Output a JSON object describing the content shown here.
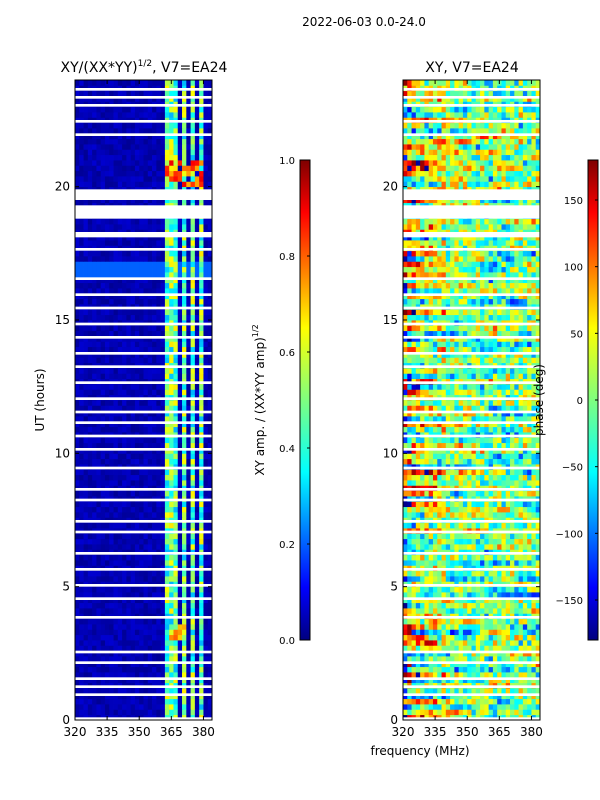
{
  "figure": {
    "suptitle": "2022-06-03 0.0-24.0",
    "xlabel": "frequency (MHz)"
  },
  "chart_data": [
    {
      "type": "heatmap",
      "title": "XY/(XX*YY)",
      "title_exponent": "1/2",
      "title_suffix": ", V7=EA24",
      "xlabel": "",
      "ylabel": "UT (hours)",
      "xlim": [
        320,
        384
      ],
      "ylim": [
        0,
        24
      ],
      "xticks": [
        "320",
        "335",
        "350",
        "365",
        "380"
      ],
      "xtick_values": [
        320,
        335,
        350,
        365,
        380
      ],
      "yticks": [
        "0",
        "5",
        "10",
        "15",
        "20"
      ],
      "ytick_values": [
        0,
        5,
        10,
        15,
        20
      ],
      "colormap": "jet",
      "colorbar": {
        "label": "XY amp. / (XX*YY amp)",
        "label_exponent": "1/2",
        "range": [
          0,
          1
        ],
        "ticks": [
          "0.0",
          "0.2",
          "0.4",
          "0.6",
          "0.8",
          "1.0"
        ],
        "tick_values": [
          0,
          0.2,
          0.4,
          0.6,
          0.8,
          1.0
        ]
      },
      "bright_channels_mhz": [
        [
          362,
          366
        ],
        [
          367,
          368
        ],
        [
          370,
          372
        ],
        [
          374,
          376
        ],
        [
          378,
          380
        ]
      ],
      "flagged_hours": [
        [
          0.0,
          0.1
        ],
        [
          0.9,
          1.0
        ],
        [
          1.2,
          1.3
        ],
        [
          1.5,
          1.6
        ],
        [
          2.1,
          2.2
        ],
        [
          2.5,
          2.6
        ],
        [
          3.8,
          3.9
        ],
        [
          4.5,
          4.6
        ],
        [
          5.0,
          5.1
        ],
        [
          5.6,
          5.7
        ],
        [
          6.2,
          6.3
        ],
        [
          7.0,
          7.1
        ],
        [
          7.4,
          7.5
        ],
        [
          8.2,
          8.3
        ],
        [
          8.6,
          8.7
        ],
        [
          9.4,
          9.5
        ],
        [
          10.1,
          10.2
        ],
        [
          10.6,
          10.7
        ],
        [
          11.1,
          11.2
        ],
        [
          11.5,
          11.6
        ],
        [
          12.0,
          12.1
        ],
        [
          12.6,
          12.7
        ],
        [
          13.2,
          13.3
        ],
        [
          13.7,
          13.8
        ],
        [
          14.3,
          14.4
        ],
        [
          14.8,
          14.9
        ],
        [
          15.4,
          15.5
        ],
        [
          15.9,
          16.0
        ],
        [
          16.5,
          16.6
        ],
        [
          17.6,
          17.7
        ],
        [
          18.1,
          18.3
        ],
        [
          18.8,
          19.3
        ],
        [
          19.5,
          19.9
        ],
        [
          21.9,
          22.0
        ],
        [
          22.4,
          22.5
        ],
        [
          23.0,
          23.1
        ],
        [
          23.3,
          23.4
        ],
        [
          23.6,
          23.7
        ]
      ]
    },
    {
      "type": "heatmap",
      "title": "XY, V7=EA24",
      "xlabel": "",
      "ylabel": "",
      "xlim": [
        320,
        384
      ],
      "ylim": [
        0,
        24
      ],
      "xticks": [
        "320",
        "335",
        "350",
        "365",
        "380"
      ],
      "xtick_values": [
        320,
        335,
        350,
        365,
        380
      ],
      "yticks": [
        "0",
        "5",
        "10",
        "15",
        "20"
      ],
      "ytick_values": [
        0,
        5,
        10,
        15,
        20
      ],
      "colormap": "jet",
      "colorbar": {
        "label": "phase (deg)",
        "range": [
          -180,
          180
        ],
        "ticks": [
          "−150",
          "−100",
          "−50",
          "0",
          "50",
          "100",
          "150"
        ],
        "tick_values": [
          -150,
          -100,
          -50,
          0,
          50,
          100,
          150
        ]
      },
      "flagged_hours": [
        [
          0.0,
          0.1
        ],
        [
          0.9,
          1.0
        ],
        [
          1.2,
          1.3
        ],
        [
          1.5,
          1.6
        ],
        [
          2.1,
          2.2
        ],
        [
          2.5,
          2.6
        ],
        [
          3.8,
          3.9
        ],
        [
          4.5,
          4.6
        ],
        [
          5.0,
          5.1
        ],
        [
          5.6,
          5.7
        ],
        [
          6.2,
          6.3
        ],
        [
          7.0,
          7.1
        ],
        [
          7.4,
          7.5
        ],
        [
          8.2,
          8.3
        ],
        [
          8.6,
          8.7
        ],
        [
          9.4,
          9.5
        ],
        [
          10.1,
          10.2
        ],
        [
          10.6,
          10.7
        ],
        [
          11.1,
          11.2
        ],
        [
          11.5,
          11.6
        ],
        [
          12.0,
          12.1
        ],
        [
          12.6,
          12.7
        ],
        [
          13.2,
          13.3
        ],
        [
          13.7,
          13.8
        ],
        [
          14.3,
          14.4
        ],
        [
          14.8,
          14.9
        ],
        [
          15.4,
          15.5
        ],
        [
          15.9,
          16.0
        ],
        [
          16.5,
          16.6
        ],
        [
          17.6,
          17.7
        ],
        [
          18.1,
          18.3
        ],
        [
          18.8,
          19.3
        ],
        [
          19.5,
          19.9
        ],
        [
          21.9,
          22.0
        ],
        [
          22.4,
          22.5
        ],
        [
          23.0,
          23.1
        ],
        [
          23.3,
          23.4
        ],
        [
          23.6,
          23.7
        ]
      ]
    }
  ]
}
